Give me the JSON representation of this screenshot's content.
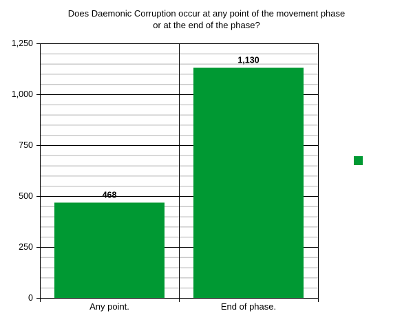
{
  "chart_data": {
    "type": "bar",
    "title": [
      "Does Daemonic Corruption occur at any point of the movement phase",
      "or at the end of the phase?"
    ],
    "categories": [
      "Any point.",
      "End of phase."
    ],
    "values": [
      468,
      1130
    ],
    "value_labels": [
      "468",
      "1,130"
    ],
    "ylim": [
      0,
      1250
    ],
    "yticks": [
      0,
      250,
      500,
      750,
      1000,
      1250
    ],
    "ytick_labels": [
      "0",
      "250",
      "500",
      "750",
      "1,000",
      "1,250"
    ],
    "minor_grid_step": 50,
    "grid": true,
    "legend": {
      "placement": "right",
      "entries": [
        ""
      ]
    },
    "colors": {
      "bar": "#009933",
      "major_grid": "#000000",
      "minor_grid": "#b3b3b3"
    }
  }
}
